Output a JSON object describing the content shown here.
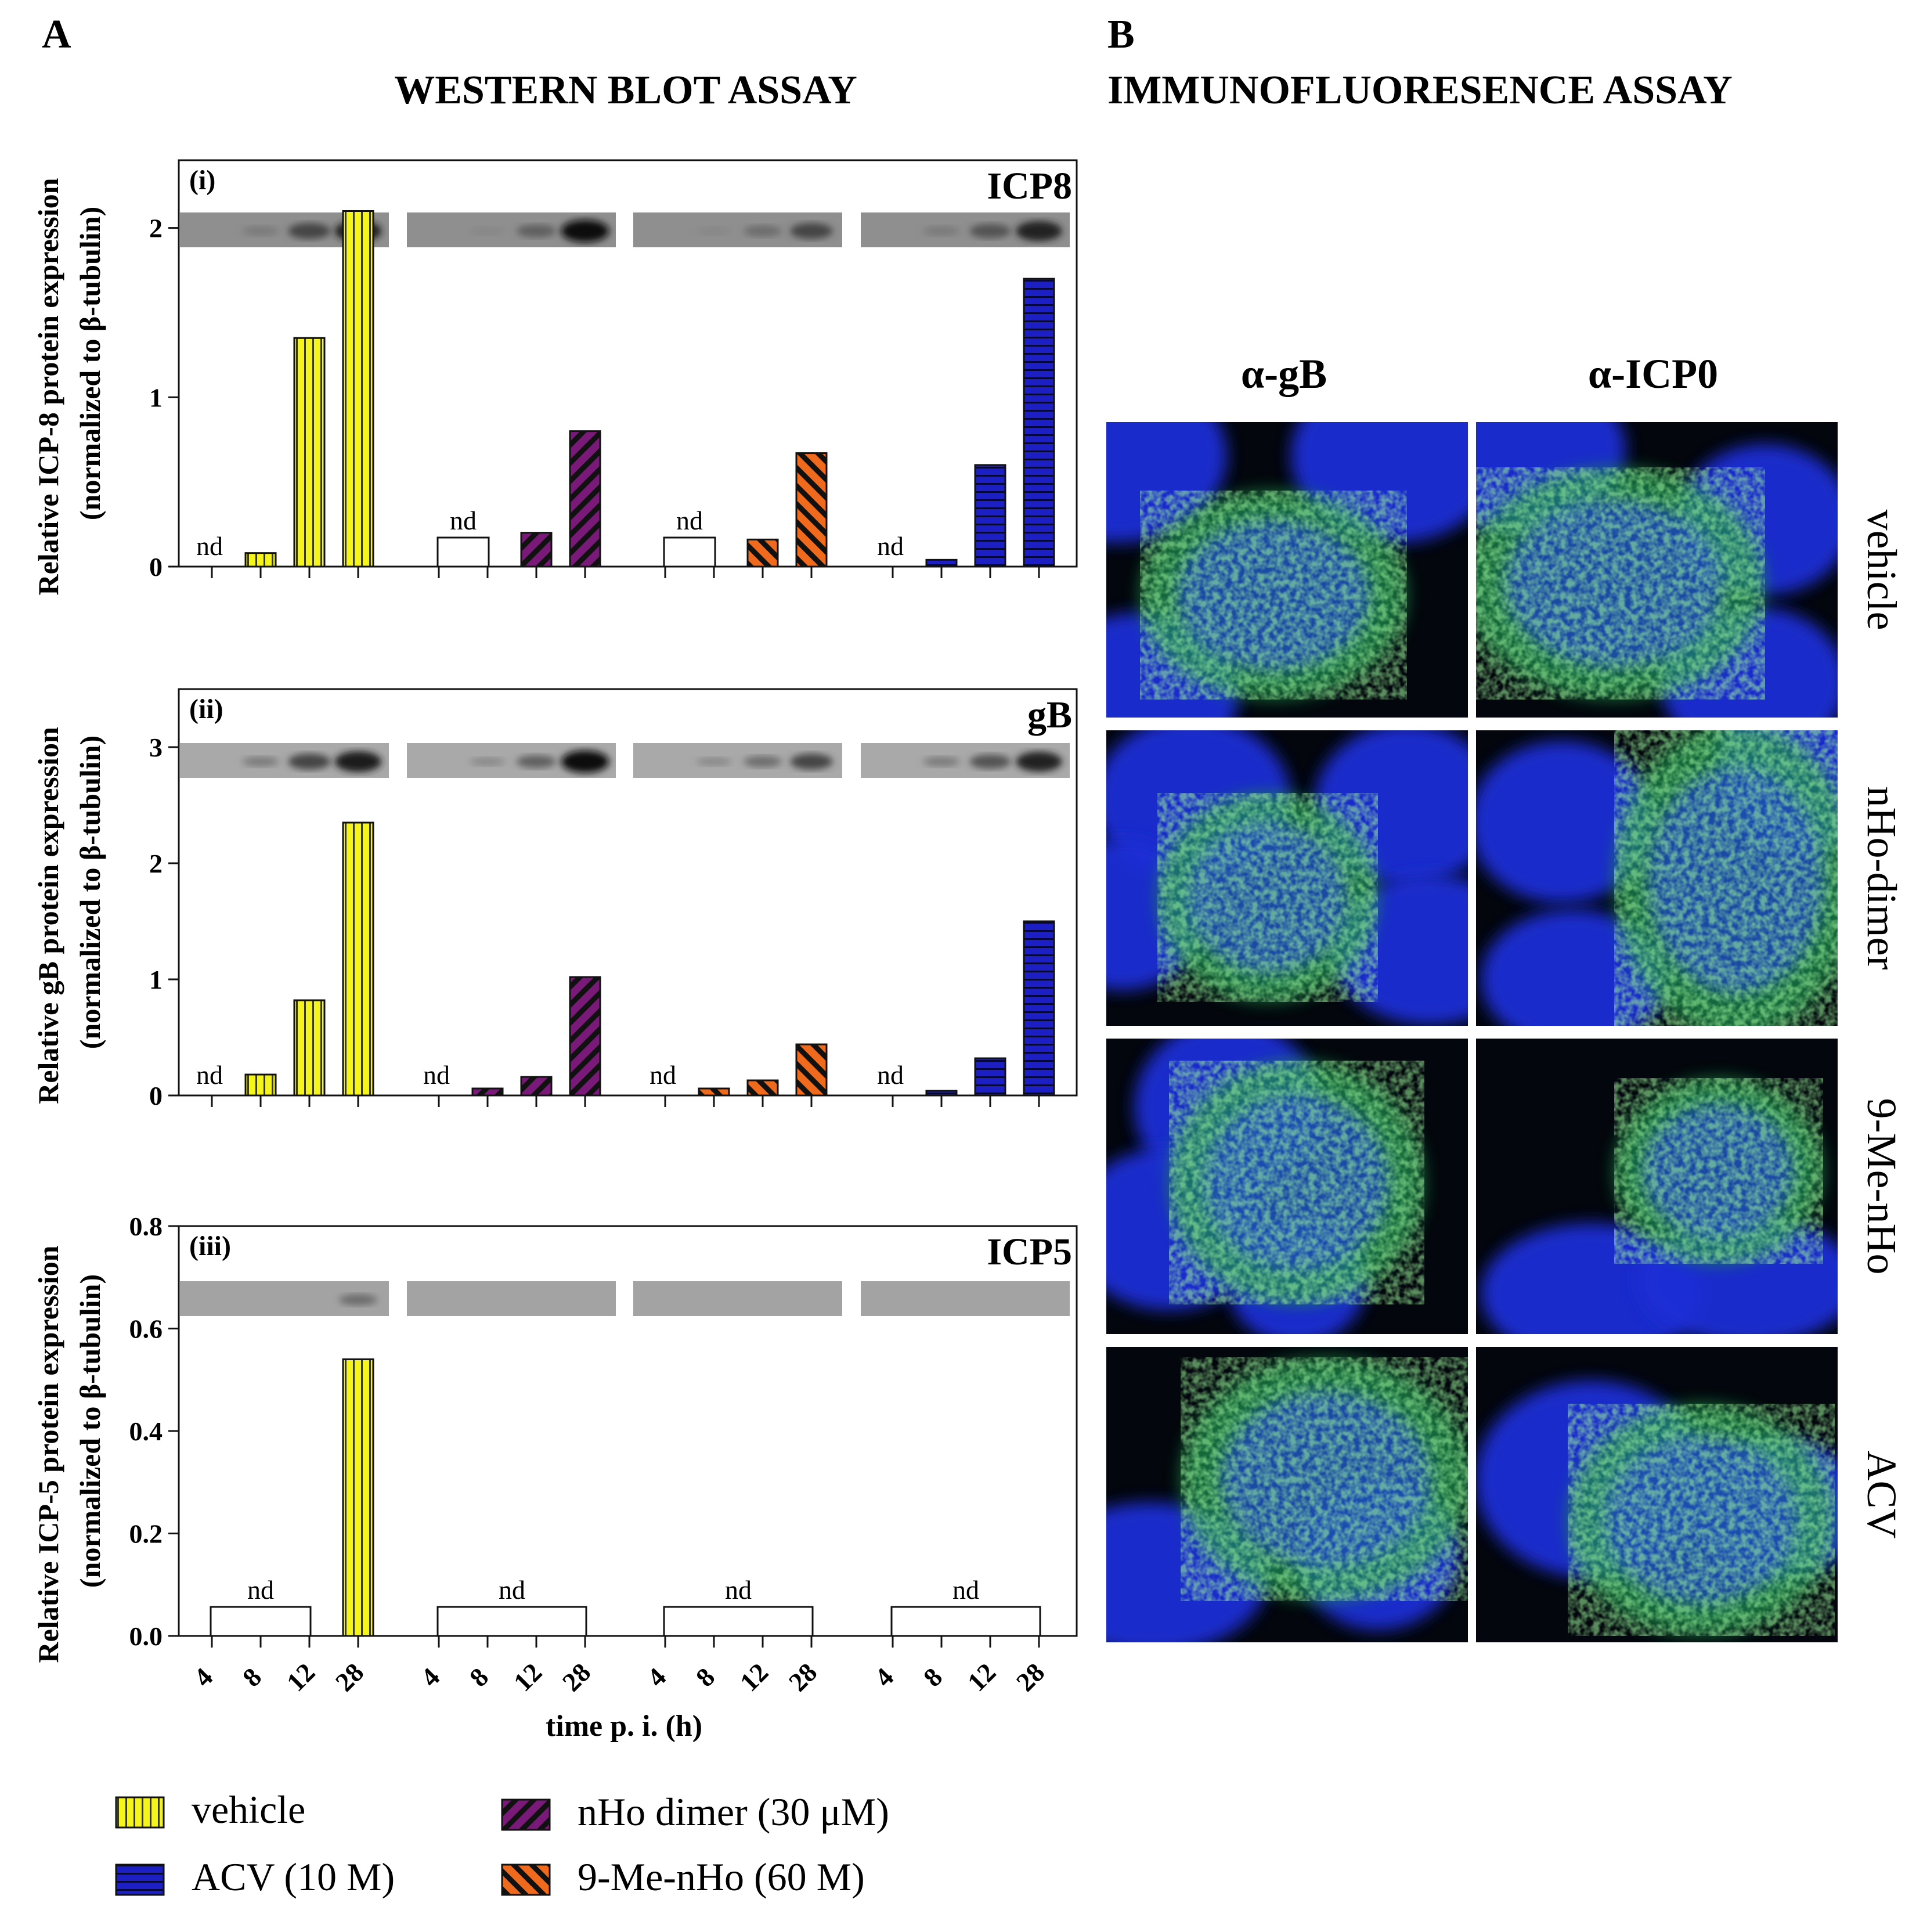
{
  "panel_a": {
    "letter": "A",
    "title": "WESTERN BLOT ASSAY",
    "xlabel": "time p. i. (h)",
    "nd_label": "nd"
  },
  "panel_b": {
    "letter": "B",
    "title": "IMMUNOFLUORESENCE ASSAY",
    "columns": [
      "α-gB",
      "α-ICP0"
    ],
    "rows": [
      "vehicle",
      "nHo-dimer",
      "9-Me-nHo",
      "ACV"
    ]
  },
  "legend": [
    {
      "label": "vehicle",
      "color": "#f5f51c",
      "pattern": "vertical"
    },
    {
      "label": "nHo dimer (30 μM)",
      "color": "#7a1a78",
      "pattern": "diagonal"
    },
    {
      "label": "ACV (10 M)",
      "color": "#1b1fc4",
      "pattern": "horizontal"
    },
    {
      "label": "9-Me-nHo (60 M)",
      "color": "#ef6a1d",
      "pattern": "diagonal"
    }
  ],
  "chart_data": [
    {
      "type": "bar",
      "panel": "(i)",
      "protein": "ICP8",
      "ylabel_line1": "Relative ICP-8 protein expression",
      "ylabel_line2": "(normalized to β-tubulin)",
      "ylim": [
        0,
        2.4
      ],
      "yticks": [
        "0",
        "1",
        "2"
      ],
      "categories": [
        "4",
        "8",
        "12",
        "28"
      ],
      "series": [
        {
          "name": "vehicle",
          "values": [
            null,
            0.08,
            1.35,
            2.1
          ],
          "nd": [
            0
          ]
        },
        {
          "name": "nHo dimer (30 μM)",
          "values": [
            null,
            null,
            0.2,
            0.8
          ],
          "nd": [
            0,
            1
          ]
        },
        {
          "name": "9-Me-nHo (60 M)",
          "values": [
            null,
            null,
            0.16,
            0.67
          ],
          "nd": [
            0,
            1
          ]
        },
        {
          "name": "ACV (10 M)",
          "values": [
            null,
            0.04,
            0.6,
            1.7
          ],
          "nd": [
            0
          ]
        }
      ]
    },
    {
      "type": "bar",
      "panel": "(ii)",
      "protein": "gB",
      "ylabel_line1": "Relative gB protein expression",
      "ylabel_line2": "(normalized to β-tubulin)",
      "ylim": [
        0,
        3.5
      ],
      "yticks": [
        "0",
        "1",
        "2",
        "3"
      ],
      "categories": [
        "4",
        "8",
        "12",
        "28"
      ],
      "series": [
        {
          "name": "vehicle",
          "values": [
            null,
            0.18,
            0.82,
            2.35
          ],
          "nd": [
            0
          ]
        },
        {
          "name": "nHo dimer (30 μM)",
          "values": [
            null,
            0.06,
            0.16,
            1.02
          ],
          "nd": [
            0
          ]
        },
        {
          "name": "9-Me-nHo (60 M)",
          "values": [
            null,
            0.06,
            0.13,
            0.44
          ],
          "nd": [
            0
          ]
        },
        {
          "name": "ACV (10 M)",
          "values": [
            null,
            0.04,
            0.32,
            1.5
          ],
          "nd": [
            0
          ]
        }
      ]
    },
    {
      "type": "bar",
      "panel": "(iii)",
      "protein": "ICP5",
      "ylabel_line1": "Relative ICP-5 protein expression",
      "ylabel_line2": "(normalized to β-tubulin)",
      "ylim": [
        0,
        0.8
      ],
      "yticks": [
        "0.0",
        "0.2",
        "0.4",
        "0.6",
        "0.8"
      ],
      "categories": [
        "4",
        "8",
        "12",
        "28"
      ],
      "series": [
        {
          "name": "vehicle",
          "values": [
            null,
            null,
            null,
            0.54
          ],
          "nd": [
            0,
            1,
            2
          ]
        },
        {
          "name": "nHo dimer (30 μM)",
          "values": [
            null,
            null,
            null,
            null
          ],
          "nd": [
            0,
            1,
            2,
            3
          ]
        },
        {
          "name": "9-Me-nHo (60 M)",
          "values": [
            null,
            null,
            null,
            null
          ],
          "nd": [
            0,
            1,
            2,
            3
          ]
        },
        {
          "name": "ACV (10 M)",
          "values": [
            null,
            null,
            null,
            null
          ],
          "nd": [
            0,
            1,
            2,
            3
          ]
        }
      ]
    }
  ]
}
